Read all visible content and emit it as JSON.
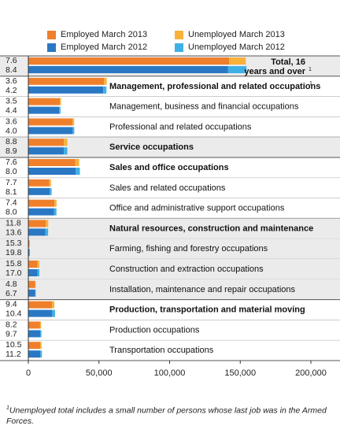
{
  "legend": {
    "employed_2013": "Employed March 2013",
    "unemployed_2013": "Unemployed March 2013",
    "employed_2012": "Employed March 2012",
    "unemployed_2012": "Unemployed March 2012"
  },
  "colors": {
    "employed_2013": "#f07f2c",
    "unemployed_2013": "#f9b13a",
    "employed_2012": "#2a78c4",
    "unemployed_2012": "#3fb0e6",
    "shade": "#ebebeb",
    "rule_major": "#555555",
    "rule_minor": "#bbbbbb"
  },
  "footnote": "Unemployed total includes a small number of persons whose last job was in the Armed Forces.",
  "footnote_marker": "1",
  "chart_data": {
    "type": "bar",
    "orientation": "horizontal",
    "stacked": true,
    "xlim": [
      0,
      200000
    ],
    "x_ticks": [
      "0",
      "50,000",
      "100,000",
      "150,000",
      "200,000"
    ],
    "x_tick_values": [
      0,
      50000,
      100000,
      150000,
      200000
    ],
    "rate_label_note": "numbers left of bars",
    "series": [
      {
        "name": "Employed March 2013",
        "key": "employed_2013"
      },
      {
        "name": "Unemployed March 2013",
        "key": "unemployed_2013"
      },
      {
        "name": "Employed March 2012",
        "key": "employed_2012"
      },
      {
        "name": "Unemployed March 2012",
        "key": "unemployed_2012"
      }
    ],
    "categories": [
      {
        "label": "Total, 16 years and over",
        "label_lines": [
          "Total, 16",
          "years and over"
        ],
        "bold": true,
        "shaded": true,
        "footnote": "1",
        "rate_2013": "7.6",
        "rate_2012": "8.4",
        "employed_2013": 142200,
        "unemployed_2013": 11700,
        "employed_2012": 141400,
        "unemployed_2012": 13000
      },
      {
        "label": "Management, professional and related occupations",
        "bold": true,
        "shaded": false,
        "footnote": "1",
        "rate_2013": "3.6",
        "rate_2012": "4.2",
        "employed_2013": 53500,
        "unemployed_2013": 2000,
        "employed_2012": 53000,
        "unemployed_2012": 2300
      },
      {
        "label": "Management, business and financial occupations",
        "bold": false,
        "shaded": false,
        "rate_2013": "3.5",
        "rate_2012": "4.4",
        "employed_2013": 22300,
        "unemployed_2013": 800,
        "employed_2012": 21800,
        "unemployed_2012": 1000
      },
      {
        "label": "Professional and related occupations",
        "bold": false,
        "shaded": false,
        "rate_2013": "3.6",
        "rate_2012": "4.0",
        "employed_2013": 31200,
        "unemployed_2013": 1200,
        "employed_2012": 31200,
        "unemployed_2012": 1300
      },
      {
        "label": "Service occupations",
        "bold": true,
        "shaded": true,
        "rate_2013": "8.8",
        "rate_2012": "8.9",
        "employed_2013": 25200,
        "unemployed_2013": 2400,
        "employed_2012": 25100,
        "unemployed_2012": 2500
      },
      {
        "label": "Sales and office occupations",
        "bold": true,
        "shaded": false,
        "rate_2013": "7.6",
        "rate_2012": "8.0",
        "employed_2013": 33300,
        "unemployed_2013": 2700,
        "employed_2012": 33600,
        "unemployed_2012": 2900
      },
      {
        "label": "Sales and related occupations",
        "bold": false,
        "shaded": false,
        "rate_2013": "7.7",
        "rate_2012": "8.1",
        "employed_2013": 14800,
        "unemployed_2013": 1200,
        "employed_2012": 15200,
        "unemployed_2012": 1300
      },
      {
        "label": "Office and administrative support occupations",
        "bold": false,
        "shaded": false,
        "rate_2013": "7.4",
        "rate_2012": "8.0",
        "employed_2013": 18500,
        "unemployed_2013": 1500,
        "employed_2012": 18300,
        "unemployed_2012": 1600
      },
      {
        "label": "Natural resources, construction and maintenance",
        "bold": true,
        "shaded": true,
        "rate_2013": "11.8",
        "rate_2012": "13.6",
        "employed_2013": 12400,
        "unemployed_2013": 1700,
        "employed_2012": 12100,
        "unemployed_2012": 1900
      },
      {
        "label": "Farming, fishing and forestry occupations",
        "bold": false,
        "shaded": true,
        "rate_2013": "15.3",
        "rate_2012": "19.8",
        "employed_2013": 800,
        "unemployed_2013": 150,
        "employed_2012": 800,
        "unemployed_2012": 200
      },
      {
        "label": "Construction and extraction occupations",
        "bold": false,
        "shaded": true,
        "rate_2013": "15.8",
        "rate_2012": "17.0",
        "employed_2013": 6500,
        "unemployed_2013": 1200,
        "employed_2012": 6500,
        "unemployed_2012": 1300
      },
      {
        "label": "Installation, maintenance and repair occupations",
        "bold": false,
        "shaded": true,
        "rate_2013": "4.8",
        "rate_2012": "6.7",
        "employed_2013": 4900,
        "unemployed_2013": 250,
        "employed_2012": 4900,
        "unemployed_2012": 350
      },
      {
        "label": "Production, transportation and material moving",
        "bold": true,
        "shaded": false,
        "rate_2013": "9.4",
        "rate_2012": "10.4",
        "employed_2013": 16700,
        "unemployed_2013": 1700,
        "employed_2012": 16900,
        "unemployed_2012": 2000
      },
      {
        "label": "Production occupations",
        "bold": false,
        "shaded": false,
        "rate_2013": "8.2",
        "rate_2012": "9.7",
        "employed_2013": 8300,
        "unemployed_2013": 750,
        "employed_2012": 8400,
        "unemployed_2012": 900
      },
      {
        "label": "Transportation occupations",
        "bold": false,
        "shaded": false,
        "rate_2013": "10.5",
        "rate_2012": "11.2",
        "employed_2013": 8400,
        "unemployed_2013": 1000,
        "employed_2012": 8500,
        "unemployed_2012": 1100
      }
    ]
  }
}
